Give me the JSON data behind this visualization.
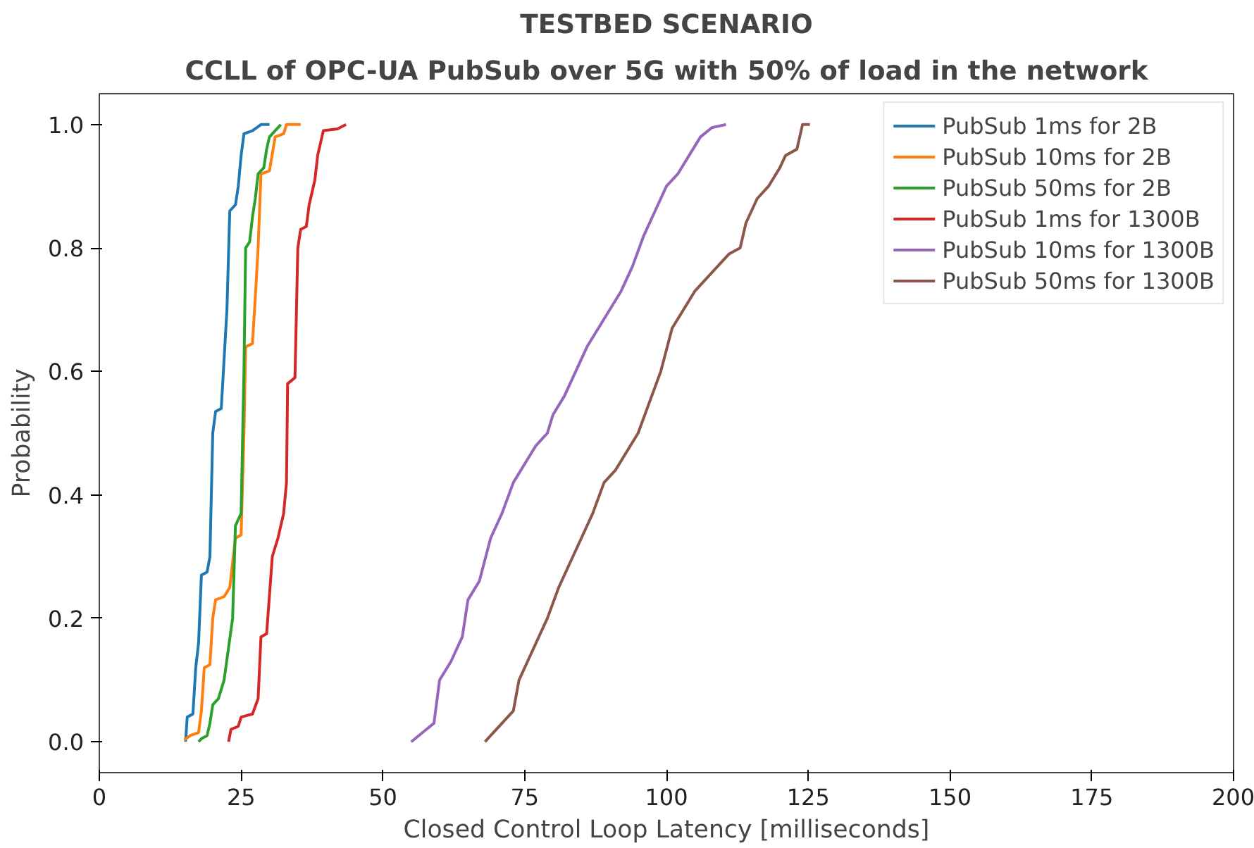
{
  "chart_data": {
    "type": "line",
    "title": "TESTBED SCENARIO",
    "subtitle": "CCLL of OPC-UA PubSub over 5G with 50% of load in the network",
    "xlabel": "Closed Control Loop Latency [milliseconds]",
    "ylabel": "Probability",
    "xlim": [
      0,
      200
    ],
    "ylim": [
      -0.05,
      1.05
    ],
    "xticks": [
      0,
      25,
      50,
      75,
      100,
      125,
      150,
      175,
      200
    ],
    "yticks": [
      {
        "value": 0,
        "label": "0.0"
      },
      {
        "value": 0.2,
        "label": "0.2"
      },
      {
        "value": 0.4,
        "label": "0.4"
      },
      {
        "value": 0.6,
        "label": "0.6"
      },
      {
        "value": 0.8,
        "label": "0.8"
      },
      {
        "value": 1,
        "label": "1.0"
      }
    ],
    "grid": false,
    "legend": "top right",
    "marker": "none",
    "line_style": "solid",
    "series": [
      {
        "name": "PubSub 1ms for 2B",
        "color": "#1f77b4",
        "x": [
          15.2,
          15.5,
          16.5,
          17,
          17.5,
          18,
          19,
          19.5,
          20,
          20.5,
          21.5,
          22,
          22.5,
          23,
          24,
          24.5,
          25,
          25.5,
          27,
          28.5,
          30
        ],
        "values": [
          0,
          0.04,
          0.045,
          0.12,
          0.16,
          0.27,
          0.275,
          0.3,
          0.5,
          0.535,
          0.54,
          0.62,
          0.7,
          0.86,
          0.87,
          0.9,
          0.95,
          0.985,
          0.99,
          1.0,
          1.0
        ]
      },
      {
        "name": "PubSub 10ms for 2B",
        "color": "#ff7f0e",
        "x": [
          15,
          16,
          17.5,
          18,
          18.5,
          19.5,
          20,
          20.5,
          22,
          23,
          24,
          25,
          25.5,
          25.8,
          27,
          27.5,
          28,
          28.5,
          30,
          31,
          32.5,
          33,
          35.5
        ],
        "values": [
          0.003,
          0.01,
          0.015,
          0.05,
          0.12,
          0.125,
          0.2,
          0.23,
          0.235,
          0.25,
          0.33,
          0.335,
          0.5,
          0.64,
          0.645,
          0.72,
          0.8,
          0.92,
          0.925,
          0.98,
          0.985,
          1.0,
          1.0
        ]
      },
      {
        "name": "PubSub 50ms for 2B",
        "color": "#2ca02c",
        "x": [
          17.5,
          18,
          19,
          19.5,
          20,
          21,
          22,
          23.5,
          24,
          25,
          25.5,
          25.8,
          26.5,
          27,
          27.5,
          28,
          29,
          29.5,
          30,
          31,
          32
        ],
        "values": [
          0,
          0.005,
          0.01,
          0.03,
          0.06,
          0.07,
          0.1,
          0.2,
          0.35,
          0.37,
          0.6,
          0.8,
          0.81,
          0.85,
          0.88,
          0.92,
          0.93,
          0.96,
          0.98,
          0.99,
          1.0
        ]
      },
      {
        "name": "PubSub 1ms for 1300B",
        "color": "#d62728",
        "x": [
          22.8,
          23.2,
          24.5,
          25,
          27,
          28,
          28.5,
          29.5,
          30.5,
          31.5,
          32.5,
          33,
          33.2,
          34.5,
          35,
          35.5,
          36.5,
          37,
          38,
          38.5,
          39.5,
          42,
          43.5
        ],
        "values": [
          0,
          0.02,
          0.025,
          0.04,
          0.045,
          0.07,
          0.17,
          0.175,
          0.3,
          0.33,
          0.37,
          0.42,
          0.58,
          0.59,
          0.8,
          0.83,
          0.835,
          0.87,
          0.91,
          0.95,
          0.99,
          0.993,
          1.0
        ]
      },
      {
        "name": "PubSub 10ms for 1300B",
        "color": "#9467bd",
        "x": [
          55,
          57,
          59,
          60,
          62,
          64,
          65,
          67,
          69,
          71,
          73,
          75,
          77,
          79,
          80,
          82,
          84,
          86,
          88,
          90,
          92,
          94,
          96,
          98,
          100,
          102,
          104,
          106,
          108,
          110.5
        ],
        "values": [
          0,
          0.015,
          0.03,
          0.1,
          0.13,
          0.17,
          0.23,
          0.26,
          0.33,
          0.37,
          0.42,
          0.45,
          0.48,
          0.5,
          0.53,
          0.56,
          0.6,
          0.64,
          0.67,
          0.7,
          0.73,
          0.77,
          0.82,
          0.86,
          0.9,
          0.92,
          0.95,
          0.98,
          0.995,
          1.0
        ]
      },
      {
        "name": "PubSub 50ms for 1300B",
        "color": "#8c564b",
        "x": [
          68,
          69,
          71,
          73,
          74,
          76,
          78,
          79,
          81,
          83,
          85,
          87,
          89,
          91,
          93,
          95,
          97,
          99,
          101,
          103,
          105,
          107,
          109,
          111,
          113,
          114,
          116,
          118,
          120,
          121,
          123,
          124,
          125.3
        ],
        "values": [
          0,
          0.01,
          0.03,
          0.05,
          0.1,
          0.14,
          0.18,
          0.2,
          0.25,
          0.29,
          0.33,
          0.37,
          0.42,
          0.44,
          0.47,
          0.5,
          0.55,
          0.6,
          0.67,
          0.7,
          0.73,
          0.75,
          0.77,
          0.79,
          0.8,
          0.84,
          0.88,
          0.9,
          0.93,
          0.95,
          0.96,
          1.0,
          1.0
        ]
      }
    ]
  }
}
